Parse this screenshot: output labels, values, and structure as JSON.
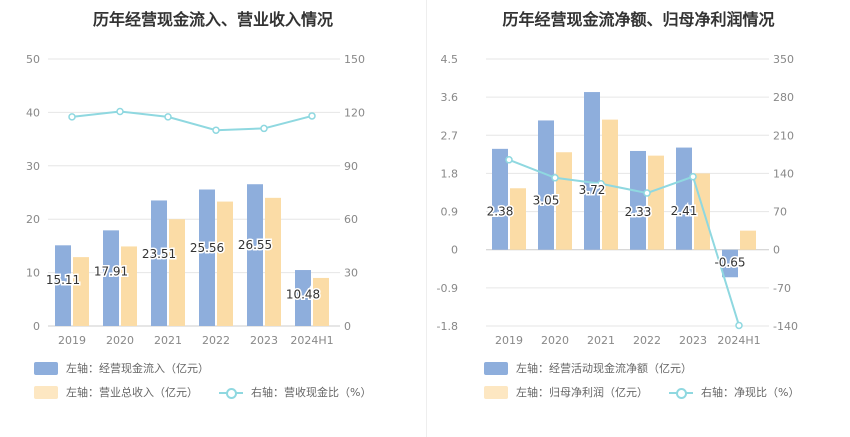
{
  "chart_data": [
    {
      "type": "bar",
      "title": "历年经营现金流入、营业收入情况",
      "categories": [
        "2019",
        "2020",
        "2021",
        "2022",
        "2023",
        "2024H1"
      ],
      "left_axis": {
        "ylim": [
          0,
          50
        ],
        "ticks": [
          "0",
          "10",
          "20",
          "30",
          "40",
          "50"
        ]
      },
      "right_axis": {
        "ylim": [
          0,
          150
        ],
        "ticks": [
          "0",
          "30",
          "60",
          "90",
          "120",
          "150"
        ]
      },
      "series": [
        {
          "name": "左轴：经营现金流入（亿元）",
          "type": "bar",
          "axis": "left",
          "color": "#8eaedc",
          "values": [
            15.11,
            17.91,
            23.51,
            25.56,
            26.55,
            10.48
          ],
          "labels": [
            "15.11",
            "17.91",
            "23.51",
            "25.56",
            "26.55",
            "10.48"
          ]
        },
        {
          "name": "左轴：营业总收入（亿元）",
          "type": "bar",
          "axis": "left",
          "color": "#fbdca6",
          "values": [
            12.9,
            14.9,
            20.0,
            23.3,
            24.0,
            9.0
          ]
        },
        {
          "name": "右轴：营收现金比（%）",
          "type": "line",
          "axis": "right",
          "color": "#8fd8e0",
          "values": [
            117.5,
            120.5,
            117.5,
            110,
            111,
            118
          ]
        }
      ],
      "grid": true,
      "legend_position": "bottom-left"
    },
    {
      "type": "bar",
      "title": "历年经营现金流净额、归母净利润情况",
      "categories": [
        "2019",
        "2020",
        "2021",
        "2022",
        "2023",
        "2024H1"
      ],
      "left_axis": {
        "ylim": [
          -1.8,
          4.5
        ],
        "ticks": [
          "-1.8",
          "-0.9",
          "0",
          "0.9",
          "1.8",
          "2.7",
          "3.6",
          "4.5"
        ]
      },
      "right_axis": {
        "ylim": [
          -140,
          350
        ],
        "ticks": [
          "-140",
          "-70",
          "0",
          "70",
          "140",
          "210",
          "280",
          "350"
        ]
      },
      "series": [
        {
          "name": "左轴：经营活动现金流净额（亿元）",
          "type": "bar",
          "axis": "left",
          "color": "#8eaedc",
          "values": [
            2.38,
            3.05,
            3.72,
            2.33,
            2.41,
            -0.65
          ],
          "labels": [
            "2.38",
            "3.05",
            "3.72",
            "2.33",
            "2.41",
            "-0.65"
          ]
        },
        {
          "name": "左轴：归母净利润（亿元）",
          "type": "bar",
          "axis": "left",
          "color": "#fbdca6",
          "values": [
            1.45,
            2.3,
            3.07,
            2.22,
            1.8,
            0.45
          ]
        },
        {
          "name": "右轴：净现比（%）",
          "type": "line",
          "axis": "right",
          "color": "#8fd8e0",
          "values": [
            165,
            132,
            121,
            104,
            134,
            -139
          ]
        }
      ],
      "grid": true,
      "legend_position": "bottom-left"
    }
  ]
}
